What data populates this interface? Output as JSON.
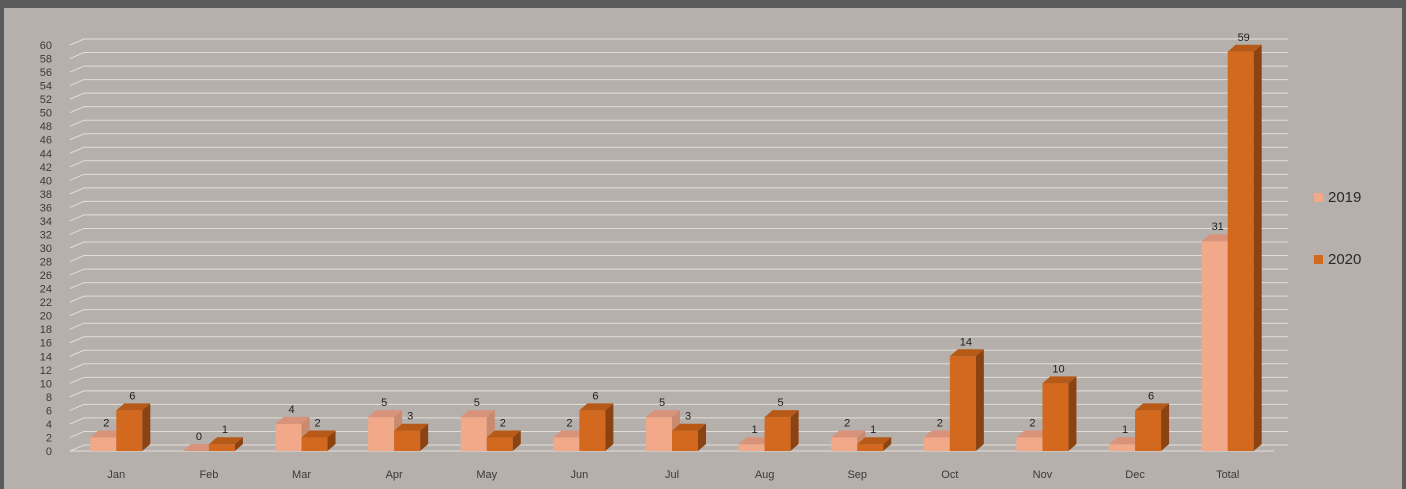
{
  "chart_data": {
    "type": "bar",
    "categories": [
      "Jan",
      "Feb",
      "Mar",
      "Apr",
      "May",
      "Jun",
      "Jul",
      "Aug",
      "Sep",
      "Oct",
      "Nov",
      "Dec",
      "Total"
    ],
    "series": [
      {
        "name": "2019",
        "values": [
          2,
          0,
          4,
          5,
          5,
          2,
          5,
          1,
          2,
          2,
          2,
          1,
          31
        ],
        "color": "#f2a98a",
        "top": "#d9937a",
        "side": "#c98a70"
      },
      {
        "name": "2020",
        "values": [
          6,
          1,
          2,
          3,
          2,
          6,
          3,
          5,
          1,
          14,
          10,
          6,
          59
        ],
        "color": "#d2691e",
        "top": "#b85a17",
        "side": "#8c4312"
      }
    ],
    "ylim": [
      0,
      60
    ],
    "ytick_step": 2,
    "grid": true,
    "legend_position": "right",
    "style": "3d-clustered-column",
    "colors": {
      "background": "#b5b0ac",
      "frame": "#5b5b5b",
      "grid": "#e2ded9"
    }
  }
}
